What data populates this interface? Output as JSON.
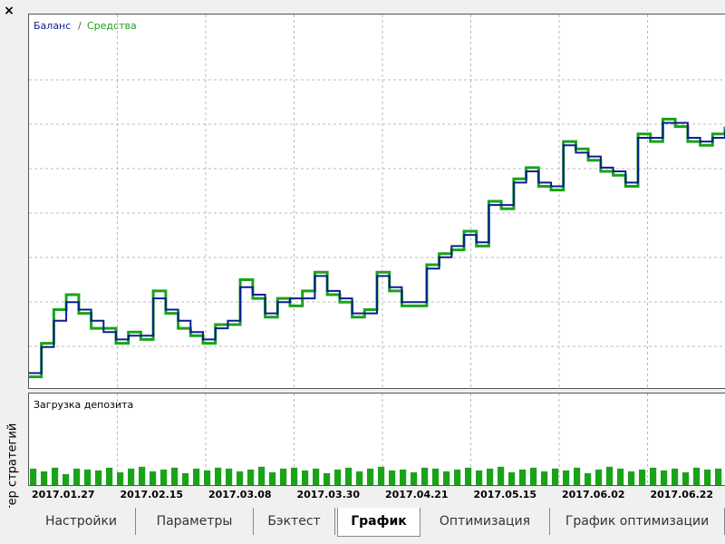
{
  "window": {
    "close": "×",
    "side_title": "Тестер стратегий"
  },
  "chart_data": [
    {
      "type": "line",
      "legend_separator": "/",
      "ylim": [
        0,
        100
      ],
      "grid": true,
      "series": [
        {
          "name": "Баланс",
          "color": "#0a1f8f",
          "values": [
            4,
            11,
            18,
            23,
            21,
            18,
            15,
            13,
            14,
            14,
            24,
            21,
            18,
            15,
            13,
            16,
            18,
            27,
            25,
            20,
            23,
            24,
            24,
            30,
            26,
            24,
            20,
            20,
            30,
            27,
            23,
            23,
            32,
            35,
            38,
            41,
            39,
            49,
            49,
            55,
            58,
            55,
            54,
            65,
            63,
            62,
            59,
            58,
            55,
            67,
            67,
            71,
            71,
            67,
            66,
            67,
            69
          ]
        },
        {
          "name": "Средства",
          "color": "#1aa31a",
          "values": [
            3,
            12,
            21,
            25,
            20,
            16,
            16,
            12,
            15,
            13,
            26,
            20,
            16,
            14,
            12,
            17,
            17,
            29,
            24,
            19,
            24,
            22,
            26,
            31,
            25,
            23,
            19,
            21,
            31,
            26,
            22,
            22,
            33,
            36,
            37,
            42,
            38,
            50,
            48,
            56,
            59,
            54,
            53,
            66,
            64,
            61,
            58,
            57,
            54,
            68,
            66,
            72,
            70,
            66,
            65,
            68,
            70
          ]
        }
      ]
    },
    {
      "type": "bar",
      "title": "Загрузка депозита",
      "color": "#1aa31a",
      "ylim": [
        0,
        100
      ],
      "values": [
        18,
        15,
        19,
        12,
        18,
        17,
        16,
        19,
        14,
        18,
        20,
        15,
        17,
        19,
        13,
        18,
        16,
        19,
        18,
        15,
        17,
        20,
        14,
        18,
        19,
        16,
        18,
        13,
        17,
        19,
        15,
        18,
        20,
        16,
        17,
        14,
        19,
        18,
        15,
        17,
        19,
        16,
        18,
        20,
        14,
        17,
        19,
        15,
        18,
        16,
        19,
        13,
        17,
        20,
        18,
        15,
        17,
        19,
        16,
        18,
        14,
        19,
        17,
        18
      ]
    }
  ],
  "time_axis": {
    "labels": [
      "2017.01.27",
      "2017.02.15",
      "2017.03.08",
      "2017.03.30",
      "2017.04.21",
      "2017.05.15",
      "2017.06.02",
      "2017.06.22"
    ]
  },
  "tabs": {
    "items": [
      "Настройки",
      "Параметры",
      "Бэктест",
      "График",
      "Оптимизация",
      "График оптимизации"
    ],
    "active": 3
  }
}
